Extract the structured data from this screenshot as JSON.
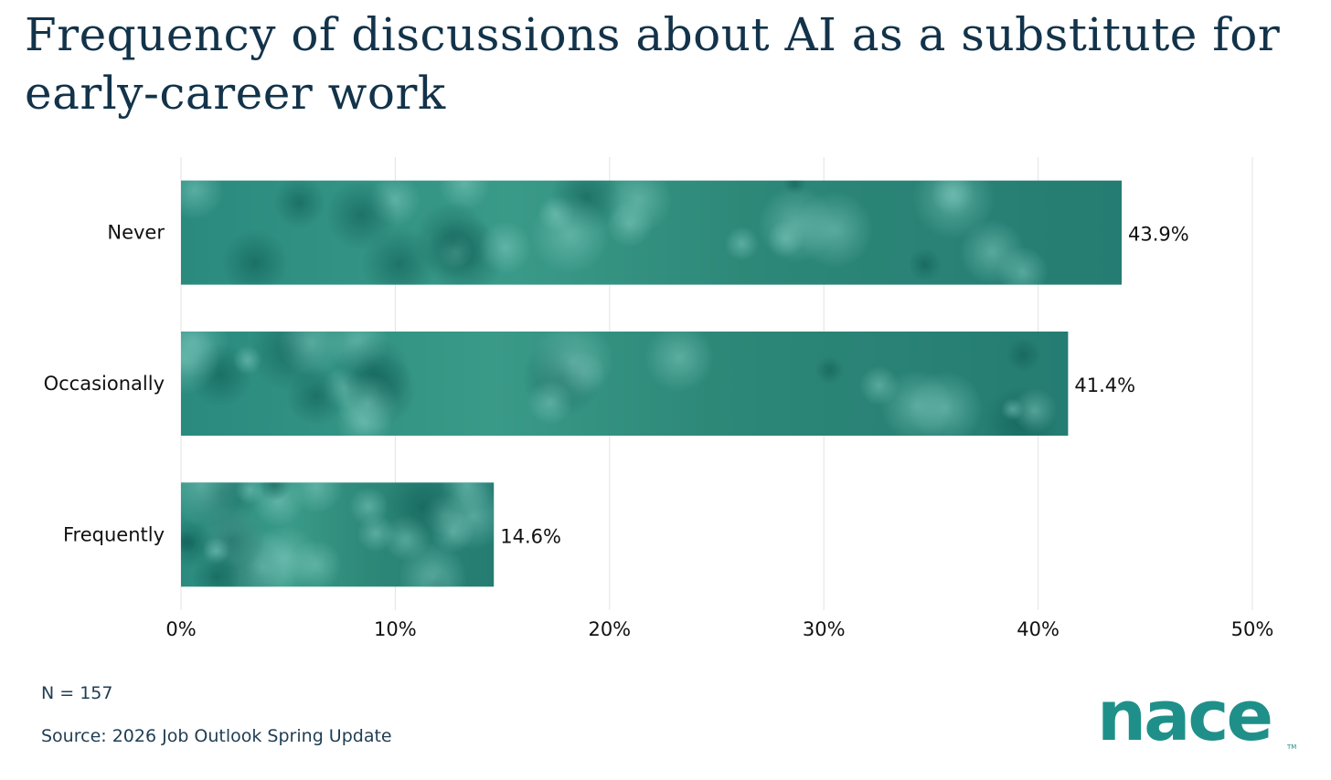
{
  "chart_data": {
    "type": "bar",
    "orientation": "horizontal",
    "title": "Frequency of discussions about AI as a substitute for early-career work",
    "categories": [
      "Never",
      "Occasionally",
      "Frequently"
    ],
    "values": [
      43.9,
      41.4,
      14.6
    ],
    "data_labels": [
      "43.9%",
      "41.4%",
      "14.6%"
    ],
    "x_ticks": [
      0,
      10,
      20,
      30,
      40,
      50
    ],
    "x_tick_labels": [
      "0%",
      "10%",
      "20%",
      "30%",
      "40%",
      "50%"
    ],
    "xlim": [
      0,
      50
    ],
    "xlabel": "",
    "ylabel": "",
    "grid": "vertical",
    "bar_color": "#2f8f85"
  },
  "footer": {
    "n_label": "N = 157",
    "source": "Source: 2026 Job Outlook Spring Update"
  },
  "brand": {
    "logo_text": "nace",
    "logo_color": "#1f9089"
  }
}
